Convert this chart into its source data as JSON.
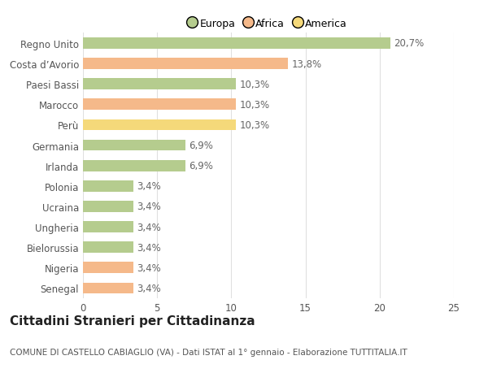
{
  "categories": [
    "Senegal",
    "Nigeria",
    "Bielorussia",
    "Ungheria",
    "Ucraina",
    "Polonia",
    "Irlanda",
    "Germania",
    "Perù",
    "Marocco",
    "Paesi Bassi",
    "Costa d’Avorio",
    "Regno Unito"
  ],
  "values": [
    3.4,
    3.4,
    3.4,
    3.4,
    3.4,
    3.4,
    6.9,
    6.9,
    10.3,
    10.3,
    10.3,
    13.8,
    20.7
  ],
  "colors": [
    "#f5b98a",
    "#f5b98a",
    "#b5cc8e",
    "#b5cc8e",
    "#b5cc8e",
    "#b5cc8e",
    "#b5cc8e",
    "#b5cc8e",
    "#f5d97a",
    "#f5b98a",
    "#b5cc8e",
    "#f5b98a",
    "#b5cc8e"
  ],
  "labels": [
    "3,4%",
    "3,4%",
    "3,4%",
    "3,4%",
    "3,4%",
    "3,4%",
    "6,9%",
    "6,9%",
    "10,3%",
    "10,3%",
    "10,3%",
    "13,8%",
    "20,7%"
  ],
  "legend": [
    {
      "label": "Europa",
      "color": "#b5cc8e"
    },
    {
      "label": "Africa",
      "color": "#f5b98a"
    },
    {
      "label": "America",
      "color": "#f5d97a"
    }
  ],
  "xlim": [
    0,
    25
  ],
  "xticks": [
    0,
    5,
    10,
    15,
    20,
    25
  ],
  "title": "Cittadini Stranieri per Cittadinanza",
  "subtitle": "COMUNE DI CASTELLO CABIAGLIO (VA) - Dati ISTAT al 1° gennaio - Elaborazione TUTTITALIA.IT",
  "background_color": "#ffffff",
  "grid_color": "#e0e0e0",
  "bar_height": 0.55,
  "label_fontsize": 8.5,
  "tick_fontsize": 8.5,
  "title_fontsize": 11,
  "subtitle_fontsize": 7.5,
  "legend_fontsize": 9
}
